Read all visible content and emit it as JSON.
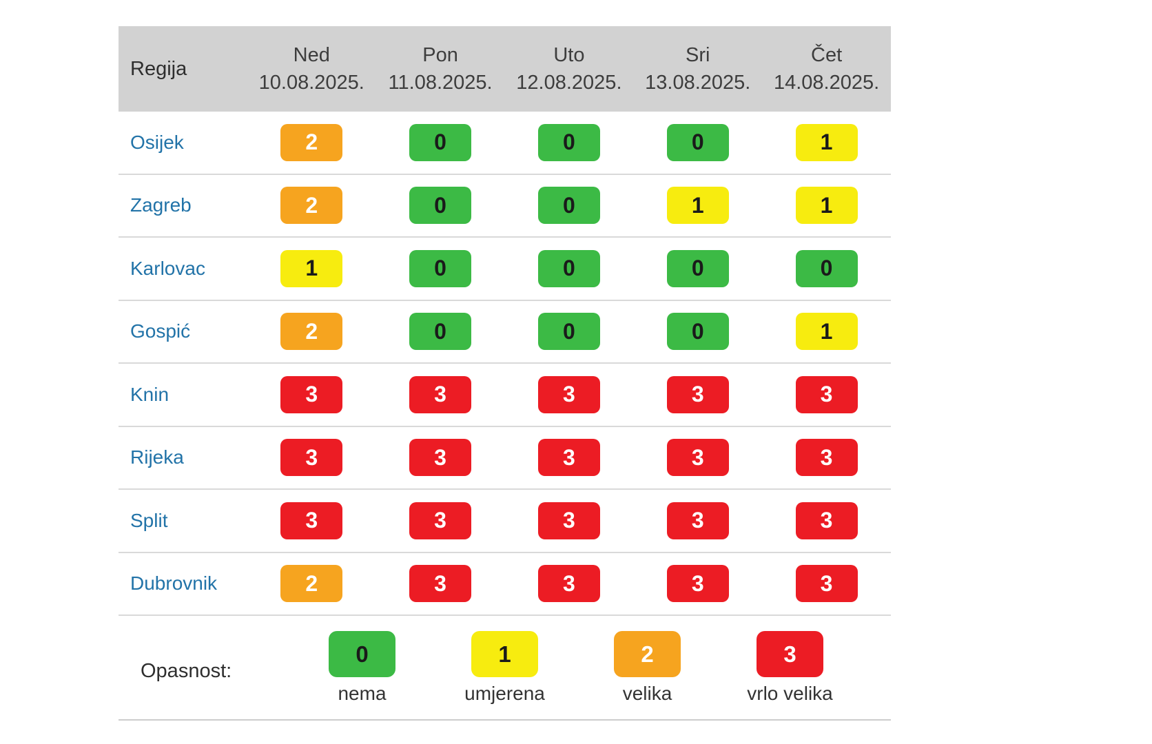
{
  "chart_data": {
    "type": "table",
    "header": {
      "region": "Regija",
      "days": [
        {
          "day": "Ned",
          "date": "10.08.2025."
        },
        {
          "day": "Pon",
          "date": "11.08.2025."
        },
        {
          "day": "Uto",
          "date": "12.08.2025."
        },
        {
          "day": "Sri",
          "date": "13.08.2025."
        },
        {
          "day": "Čet",
          "date": "14.08.2025."
        }
      ]
    },
    "rows": [
      {
        "region": "Osijek",
        "values": [
          2,
          0,
          0,
          0,
          1
        ]
      },
      {
        "region": "Zagreb",
        "values": [
          2,
          0,
          0,
          1,
          1
        ]
      },
      {
        "region": "Karlovac",
        "values": [
          1,
          0,
          0,
          0,
          0
        ]
      },
      {
        "region": "Gospić",
        "values": [
          2,
          0,
          0,
          0,
          1
        ]
      },
      {
        "region": "Knin",
        "values": [
          3,
          3,
          3,
          3,
          3
        ]
      },
      {
        "region": "Rijeka",
        "values": [
          3,
          3,
          3,
          3,
          3
        ]
      },
      {
        "region": "Split",
        "values": [
          3,
          3,
          3,
          3,
          3
        ]
      },
      {
        "region": "Dubrovnik",
        "values": [
          2,
          3,
          3,
          3,
          3
        ]
      }
    ],
    "legend": {
      "label": "Opasnost:",
      "items": [
        {
          "value": 0,
          "label": "nema"
        },
        {
          "value": 1,
          "label": "umjerena"
        },
        {
          "value": 2,
          "label": "velika"
        },
        {
          "value": 3,
          "label": "vrlo velika"
        }
      ]
    }
  },
  "colors": {
    "level_0": "#3cba45",
    "level_1": "#f7ec0f",
    "level_2": "#f6a41f",
    "level_3": "#ec1c24",
    "badge_text_dark": "#1a1a1a",
    "badge_text_light": "#ffffff",
    "header_bg": "#d2d2d2",
    "header_text": "#3d3d3d",
    "region_text": "#2273a8",
    "separator": "#d9d9d9"
  }
}
